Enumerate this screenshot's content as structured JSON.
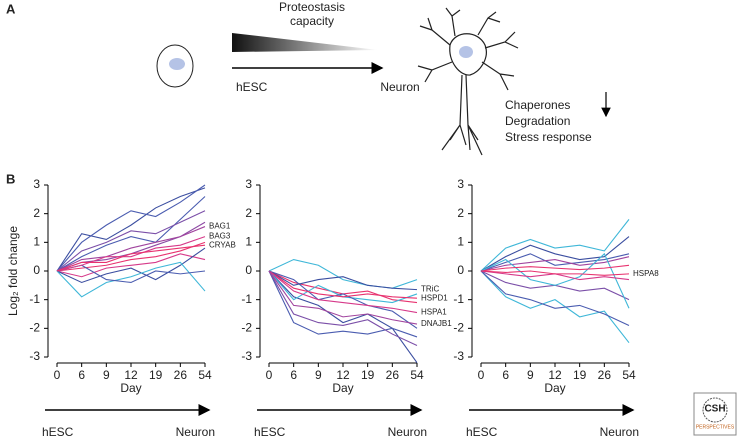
{
  "panel_a": {
    "label": "A",
    "title_lines": [
      "Proteostasis",
      "capacity"
    ],
    "start": "hESC",
    "end": "Neuron",
    "effects": [
      "Chaperones",
      "Degradation",
      "Stress response"
    ]
  },
  "panel_b_label": "B",
  "logo": {
    "text": "CSH",
    "subtext": "PERSPECTIVES"
  },
  "chart_data": [
    {
      "type": "line",
      "y_label": "Log₂ fold change",
      "x_label": "Day",
      "start_label": "hESC",
      "end_label": "Neuron",
      "categories": [
        "0",
        "6",
        "9",
        "12",
        "19",
        "26",
        "54"
      ],
      "ylim": [
        -3,
        3
      ],
      "yticks": [
        -3,
        -2,
        -1,
        0,
        1,
        2,
        3
      ],
      "series": [
        {
          "color": "#3b4ea0",
          "values": [
            0,
            1.3,
            1.1,
            1.6,
            2.2,
            2.6,
            2.9
          ]
        },
        {
          "color": "#4a5cb0",
          "values": [
            0,
            1.0,
            1.6,
            2.1,
            1.9,
            2.4,
            3.0
          ]
        },
        {
          "color": "#4a5cb0",
          "values": [
            0,
            0.5,
            0.9,
            1.2,
            1.0,
            1.8,
            2.6
          ]
        },
        {
          "color": "#7b4fa8",
          "values": [
            0,
            0.7,
            1.0,
            1.4,
            1.3,
            1.7,
            2.1
          ]
        },
        {
          "color": "#8d4aa4",
          "values": [
            0,
            0.3,
            0.4,
            0.6,
            0.9,
            1.2,
            1.7
          ]
        },
        {
          "color": "#e8326f",
          "values": [
            0,
            0.1,
            0.2,
            0.4,
            0.5,
            0.7,
            1.0
          ]
        },
        {
          "color": "#d63a8a",
          "values": [
            0,
            -0.2,
            0.1,
            0.2,
            0.3,
            0.6,
            0.4
          ]
        },
        {
          "color": "#3b4ea0",
          "values": [
            0,
            -0.4,
            -0.1,
            0.1,
            -0.3,
            0.2,
            0.8
          ]
        },
        {
          "color": "#3fb7d8",
          "values": [
            0,
            -0.9,
            -0.4,
            -0.2,
            0.1,
            0.3,
            -0.7
          ]
        },
        {
          "color": "#4a5cb0",
          "values": [
            0,
            0.2,
            -0.3,
            -0.4,
            0.0,
            -0.1,
            0.0
          ]
        },
        {
          "name": "BAG1",
          "color": "#a0449e",
          "values": [
            0,
            0.4,
            0.5,
            0.8,
            1.0,
            1.2,
            1.55
          ]
        },
        {
          "name": "BAG3",
          "color": "#d63a8a",
          "values": [
            0,
            0.2,
            0.5,
            0.5,
            0.8,
            0.9,
            1.2
          ]
        },
        {
          "name": "CRYAB",
          "color": "#e8326f",
          "values": [
            0,
            0.3,
            0.3,
            0.6,
            0.7,
            0.8,
            0.9
          ]
        }
      ]
    },
    {
      "type": "line",
      "x_label": "Day",
      "start_label": "hESC",
      "end_label": "Neuron",
      "categories": [
        "0",
        "6",
        "9",
        "12",
        "19",
        "26",
        "54"
      ],
      "ylim": [
        -3,
        3
      ],
      "yticks": [
        -3,
        -2,
        -1,
        0,
        1,
        2,
        3
      ],
      "series": [
        {
          "color": "#3fb7d8",
          "values": [
            0,
            0.4,
            0.2,
            -0.3,
            -0.5,
            -0.6,
            -0.3
          ]
        },
        {
          "color": "#3b4ea0",
          "values": [
            0,
            -0.9,
            -1.2,
            -1.8,
            -1.5,
            -2.0,
            -3.2
          ]
        },
        {
          "color": "#4a5cb0",
          "values": [
            0,
            -1.8,
            -2.2,
            -2.1,
            -2.2,
            -2.0,
            -2.3
          ]
        },
        {
          "color": "#e8326f",
          "values": [
            0,
            -0.4,
            -0.6,
            -0.8,
            -0.7,
            -1.0,
            -1.1
          ]
        },
        {
          "color": "#7b4fa8",
          "values": [
            0,
            -1.5,
            -1.8,
            -1.9,
            -1.7,
            -2.2,
            -2.6
          ]
        },
        {
          "color": "#3fb7d8",
          "values": [
            0,
            -1.0,
            -0.5,
            -0.9,
            -1.0,
            -1.1,
            -0.8
          ]
        },
        {
          "color": "#4a5cb0",
          "values": [
            0,
            -0.3,
            -1.0,
            -0.8,
            -1.2,
            -1.4,
            -2.0
          ]
        },
        {
          "name": "TRiC",
          "color": "#3b4ea0",
          "values": [
            0,
            -0.5,
            -0.3,
            -0.2,
            -0.5,
            -0.6,
            -0.65
          ]
        },
        {
          "name": "HSPD1",
          "color": "#e8326f",
          "values": [
            0,
            -0.6,
            -0.8,
            -0.9,
            -0.8,
            -0.9,
            -0.95
          ]
        },
        {
          "name": "HSPA1",
          "color": "#d63a8a",
          "values": [
            0,
            -0.7,
            -1.0,
            -1.1,
            -1.2,
            -1.3,
            -1.45
          ]
        },
        {
          "name": "DNAJB1",
          "color": "#a0449e",
          "values": [
            0,
            -1.2,
            -1.3,
            -1.6,
            -1.5,
            -1.7,
            -1.85
          ]
        }
      ]
    },
    {
      "type": "line",
      "x_label": "Day",
      "start_label": "hESC",
      "end_label": "Neuron",
      "categories": [
        "0",
        "6",
        "9",
        "12",
        "19",
        "26",
        "54"
      ],
      "ylim": [
        -3,
        3
      ],
      "yticks": [
        -3,
        -2,
        -1,
        0,
        1,
        2,
        3
      ],
      "series": [
        {
          "color": "#3fb7d8",
          "values": [
            0,
            0.8,
            1.1,
            0.8,
            0.9,
            0.7,
            1.8
          ]
        },
        {
          "color": "#3fb7d8",
          "values": [
            0,
            -0.9,
            -1.3,
            -1.0,
            -1.6,
            -1.4,
            -2.5
          ]
        },
        {
          "color": "#3b4ea0",
          "values": [
            0,
            0.5,
            0.9,
            0.6,
            0.4,
            0.5,
            1.2
          ]
        },
        {
          "color": "#4a5cb0",
          "values": [
            0,
            -0.8,
            -1.0,
            -1.3,
            -1.2,
            -1.5,
            -1.9
          ]
        },
        {
          "color": "#4a5cb0",
          "values": [
            0,
            0.3,
            0.6,
            0.2,
            0.3,
            0.4,
            0.6
          ]
        },
        {
          "color": "#7b4fa8",
          "values": [
            0,
            -0.4,
            -0.6,
            -0.5,
            -0.7,
            -0.6,
            -1.0
          ]
        },
        {
          "color": "#a0449e",
          "values": [
            0,
            0.2,
            0.3,
            0.4,
            0.2,
            0.3,
            0.5
          ]
        },
        {
          "color": "#3fb7d8",
          "values": [
            0,
            0.4,
            -0.3,
            -0.5,
            -0.2,
            0.6,
            -1.3
          ]
        },
        {
          "color": "#d63a8a",
          "values": [
            0,
            -0.1,
            -0.2,
            -0.1,
            -0.3,
            -0.2,
            -0.3
          ]
        },
        {
          "color": "#e8326f",
          "values": [
            0,
            0.1,
            0.15,
            0.1,
            0.05,
            0.1,
            0.2
          ]
        },
        {
          "name": "HSPA8",
          "color": "#e8326f",
          "values": [
            0,
            -0.05,
            0.0,
            -0.1,
            -0.1,
            -0.15,
            -0.1
          ]
        }
      ]
    }
  ]
}
